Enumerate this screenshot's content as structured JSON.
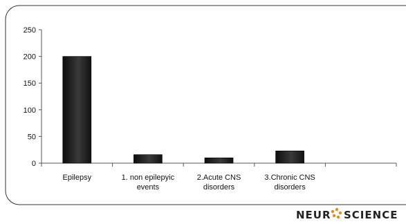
{
  "chart_data": {
    "type": "bar",
    "title": "",
    "xlabel": "",
    "ylabel": "",
    "categories": [
      [
        "Epilepsy"
      ],
      [
        "1. non epilepyic",
        "events"
      ],
      [
        "2.Acute CNS",
        "disorders"
      ],
      [
        "3.Chronic CNS",
        "disorders"
      ],
      [
        ""
      ]
    ],
    "values": [
      200,
      16,
      10,
      23,
      null
    ],
    "ylim": [
      0,
      250
    ],
    "yticks": [
      0,
      50,
      100,
      150,
      200,
      250
    ],
    "grid": false,
    "legend": "none",
    "bar_color": "#1a1a1a"
  },
  "brand": {
    "text_left": "NEUR",
    "text_right": "SCIENCE",
    "icon": "brain-dots-icon",
    "accent_color": "#e08a2a"
  }
}
